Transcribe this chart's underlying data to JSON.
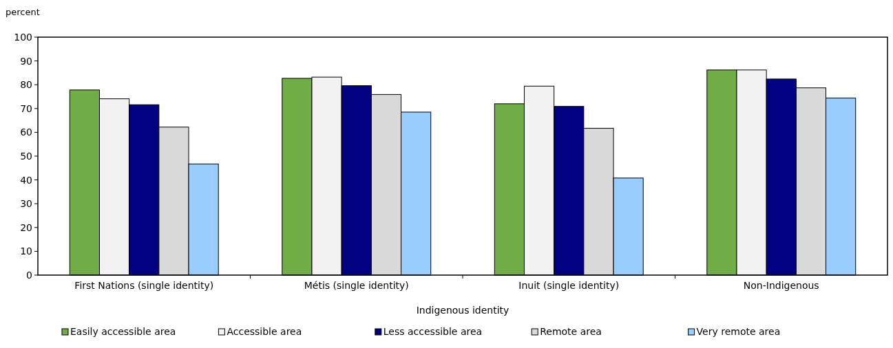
{
  "chart_data": {
    "type": "bar",
    "ylabel": "percent",
    "xlabel": "Indigenous identity",
    "categories": [
      "First Nations (single identity)",
      "Métis (single identity)",
      "Inuit (single identity)",
      "Non-Indigenous"
    ],
    "series": [
      {
        "name": "Easily accessible area",
        "color": "#70ad47",
        "values": [
          77.8,
          82.7,
          72.0,
          86.2
        ]
      },
      {
        "name": "Accessible area",
        "color": "#f2f2f2",
        "values": [
          74.1,
          83.2,
          79.4,
          86.2
        ]
      },
      {
        "name": "Less accessible area",
        "color": "#000080",
        "values": [
          71.6,
          79.6,
          70.9,
          82.4
        ]
      },
      {
        "name": "Remote area",
        "color": "#d9d9d9",
        "values": [
          62.2,
          75.9,
          61.7,
          78.7
        ]
      },
      {
        "name": "Very remote area",
        "color": "#99ccff",
        "values": [
          46.7,
          68.5,
          40.8,
          74.4
        ]
      }
    ],
    "ylim": [
      0,
      100
    ],
    "yticks": [
      0,
      10,
      20,
      30,
      40,
      50,
      60,
      70,
      80,
      90,
      100
    ],
    "grid": false,
    "legend": "bottom"
  }
}
